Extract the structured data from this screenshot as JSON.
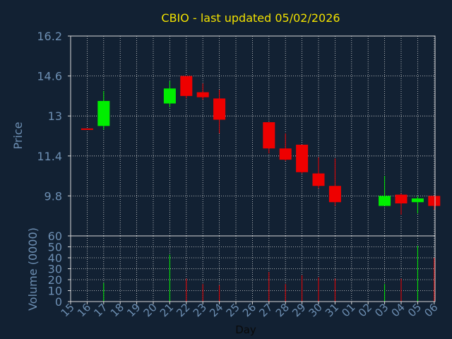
{
  "chart_data": {
    "type": "candlestick",
    "title": "CBIO - last updated 05/02/2026",
    "xlabel": "Day",
    "price_panel": {
      "ylabel": "Price",
      "ylim": [
        8.2,
        16.2
      ],
      "yticks": [
        "16.2",
        "14.6",
        "13",
        "11.4",
        "9.8"
      ]
    },
    "volume_panel": {
      "ylabel": "Volume (0000)",
      "ylim": [
        0,
        60
      ],
      "yticks": [
        "60",
        "50",
        "40",
        "30",
        "20",
        "10",
        "0"
      ]
    },
    "x_tick_labels": [
      "15",
      "16",
      "17",
      "18",
      "19",
      "20",
      "21",
      "22",
      "23",
      "24",
      "25",
      "26",
      "27",
      "28",
      "29",
      "30",
      "31",
      "01",
      "02",
      "03",
      "04",
      "05",
      "06"
    ],
    "grid": true,
    "candles": [
      {
        "day": "15",
        "open": 12.5,
        "high": 12.5,
        "low": 12.45,
        "close": 12.45,
        "volume": 0
      },
      {
        "day": "16",
        "open": 12.6,
        "high": 14.0,
        "low": 12.45,
        "close": 13.6,
        "volume": 17
      },
      {
        "day": "20",
        "open": 13.5,
        "high": 14.4,
        "low": 13.35,
        "close": 14.1,
        "volume": 43
      },
      {
        "day": "21",
        "open": 14.6,
        "high": 14.6,
        "low": 13.7,
        "close": 13.8,
        "volume": 21
      },
      {
        "day": "22",
        "open": 13.95,
        "high": 14.3,
        "low": 13.65,
        "close": 13.75,
        "volume": 16
      },
      {
        "day": "23",
        "open": 13.7,
        "high": 14.05,
        "low": 12.3,
        "close": 12.85,
        "volume": 15
      },
      {
        "day": "26",
        "open": 12.75,
        "high": 12.75,
        "low": 11.5,
        "close": 11.7,
        "volume": 27
      },
      {
        "day": "27",
        "open": 11.7,
        "high": 12.3,
        "low": 11.2,
        "close": 11.25,
        "volume": 16
      },
      {
        "day": "28",
        "open": 11.85,
        "high": 11.85,
        "low": 10.7,
        "close": 10.75,
        "volume": 24
      },
      {
        "day": "29",
        "open": 10.7,
        "high": 11.35,
        "low": 10.1,
        "close": 10.2,
        "volume": 22
      },
      {
        "day": "30",
        "open": 10.2,
        "high": 11.3,
        "low": 9.4,
        "close": 9.55,
        "volume": 21
      },
      {
        "day": "02",
        "open": 9.4,
        "high": 10.6,
        "low": 9.4,
        "close": 9.8,
        "volume": 16
      },
      {
        "day": "03",
        "open": 9.85,
        "high": 9.9,
        "low": 9.05,
        "close": 9.5,
        "volume": 21
      },
      {
        "day": "04",
        "open": 9.55,
        "high": 9.8,
        "low": 9.1,
        "close": 9.7,
        "volume": 51
      },
      {
        "day": "05",
        "open": 9.8,
        "high": 9.8,
        "low": 9.25,
        "close": 9.4,
        "volume": 40
      }
    ]
  },
  "colors": {
    "background": "#122133",
    "grid": "#d8d8d8",
    "axis": "#d8d8d8",
    "label": "#6d8fb3",
    "title": "#f0e000",
    "xlabel": "#0a0a0a",
    "up": "#00ee00",
    "down": "#ee0000"
  }
}
